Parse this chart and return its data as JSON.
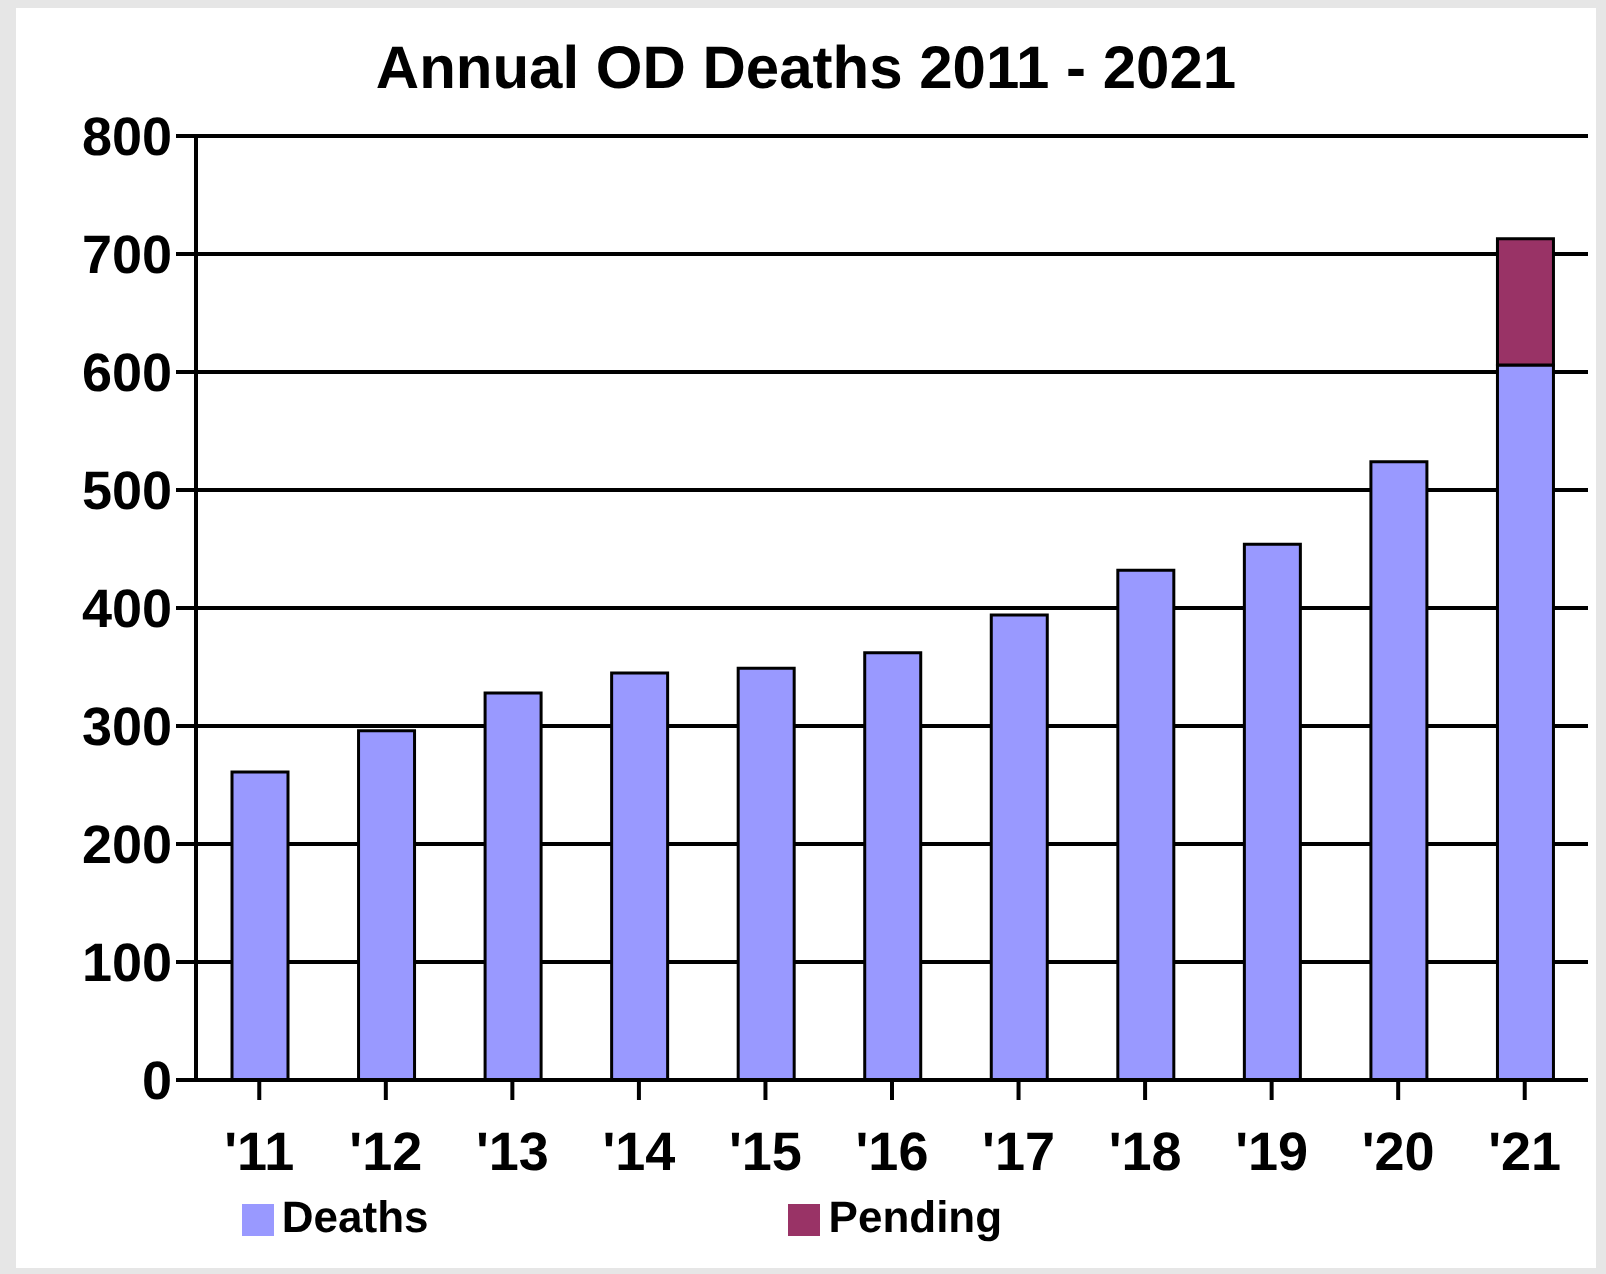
{
  "chart_data": {
    "type": "bar",
    "title": "Annual OD Deaths 2011 - 2021",
    "categories": [
      "'11",
      "'12",
      "'13",
      "'14",
      "'15",
      "'16",
      "'17",
      "'18",
      "'19",
      "'20",
      "'21"
    ],
    "stacked": true,
    "series": [
      {
        "name": "Deaths",
        "color": "#9999ff",
        "values": [
          261,
          296,
          328,
          345,
          349,
          362,
          394,
          432,
          454,
          524,
          606
        ]
      },
      {
        "name": "Pending",
        "color": "#993366",
        "values": [
          null,
          null,
          null,
          null,
          null,
          null,
          null,
          null,
          null,
          null,
          107
        ]
      }
    ],
    "ylim": [
      0,
      800
    ],
    "yticks": [
      0,
      100,
      200,
      300,
      400,
      500,
      600,
      700,
      800
    ],
    "grid": "y",
    "legend": "bottom"
  }
}
